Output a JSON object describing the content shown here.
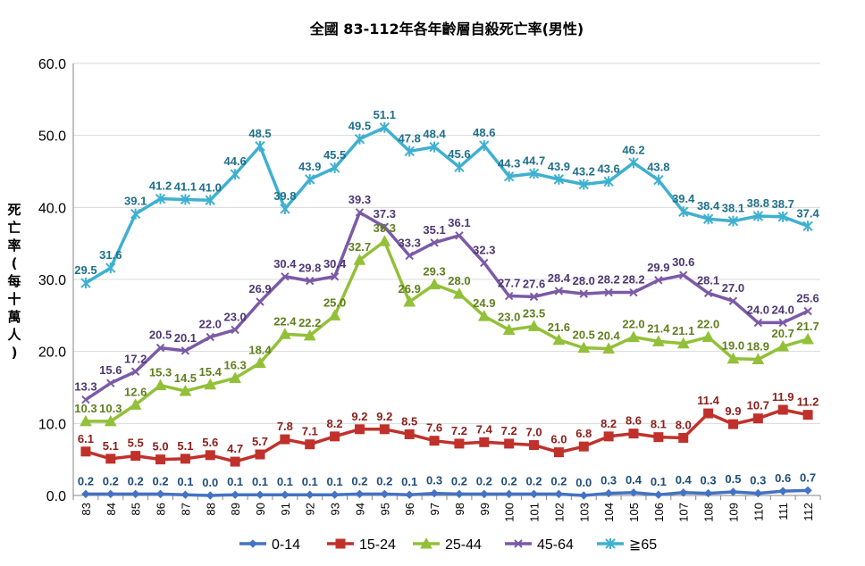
{
  "chart_data": {
    "type": "line",
    "title": "全國 83-112年各年齡層自殺死亡率(男性)",
    "ylabel": "死亡率(每十萬人)",
    "xlabel": "",
    "ylim": [
      0,
      60
    ],
    "yticks": [
      "0.0",
      "10.0",
      "20.0",
      "30.0",
      "40.0",
      "50.0",
      "60.0"
    ],
    "grid": true,
    "legend_position": "bottom",
    "categories": [
      "83",
      "84",
      "85",
      "86",
      "87",
      "88",
      "89",
      "90",
      "91",
      "92",
      "93",
      "94",
      "95",
      "96",
      "97",
      "98",
      "99",
      "100",
      "101",
      "102",
      "103",
      "104",
      "105",
      "106",
      "107",
      "108",
      "109",
      "110",
      "111",
      "112"
    ],
    "series": [
      {
        "name": "0-14",
        "color": "#4472C4",
        "label_color": "#1F4E79",
        "marker": "diamond",
        "values": [
          0.2,
          0.2,
          0.2,
          0.2,
          0.1,
          0.0,
          0.1,
          0.1,
          0.1,
          0.1,
          0.1,
          0.2,
          0.2,
          0.1,
          0.3,
          0.2,
          0.2,
          0.2,
          0.2,
          0.2,
          0.0,
          0.3,
          0.4,
          0.1,
          0.4,
          0.3,
          0.5,
          0.3,
          0.6,
          0.7
        ]
      },
      {
        "name": "15-24",
        "color": "#C0312B",
        "label_color": "#8B1E1A",
        "marker": "square",
        "values": [
          6.1,
          5.1,
          5.5,
          5.0,
          5.1,
          5.6,
          4.7,
          5.7,
          7.8,
          7.1,
          8.2,
          9.2,
          9.2,
          8.5,
          7.6,
          7.2,
          7.4,
          7.2,
          7.0,
          6.0,
          6.8,
          8.2,
          8.6,
          8.1,
          8.0,
          11.4,
          9.9,
          10.7,
          11.9,
          11.2
        ]
      },
      {
        "name": "25-44",
        "color": "#92C038",
        "label_color": "#5F7F1E",
        "marker": "triangle",
        "values": [
          10.3,
          10.3,
          12.6,
          15.3,
          14.5,
          15.4,
          16.3,
          18.4,
          22.4,
          22.2,
          25.0,
          32.7,
          35.3,
          26.9,
          29.3,
          28.0,
          24.9,
          23.0,
          23.5,
          21.6,
          20.5,
          20.4,
          22.0,
          21.4,
          21.1,
          22.0,
          19.0,
          18.9,
          20.7,
          21.7
        ]
      },
      {
        "name": "45-64",
        "color": "#7B5AA6",
        "label_color": "#4E3873",
        "marker": "x",
        "values": [
          13.3,
          15.6,
          17.2,
          20.5,
          20.1,
          22.0,
          23.0,
          26.9,
          30.4,
          29.8,
          30.4,
          39.3,
          37.3,
          33.3,
          35.1,
          36.1,
          32.3,
          27.7,
          27.6,
          28.4,
          28.0,
          28.2,
          28.2,
          29.9,
          30.6,
          28.1,
          27.0,
          24.0,
          24.0,
          25.6
        ]
      },
      {
        "name": "≧65",
        "color": "#3FB0CF",
        "label_color": "#1F6F8B",
        "marker": "star",
        "values": [
          29.5,
          31.6,
          39.1,
          41.2,
          41.1,
          41.0,
          44.6,
          48.5,
          39.8,
          43.9,
          45.5,
          49.5,
          51.1,
          47.8,
          48.4,
          45.6,
          48.6,
          44.3,
          44.7,
          43.9,
          43.2,
          43.6,
          46.2,
          43.8,
          39.4,
          38.4,
          38.1,
          38.8,
          38.7,
          37.4
        ]
      }
    ]
  }
}
